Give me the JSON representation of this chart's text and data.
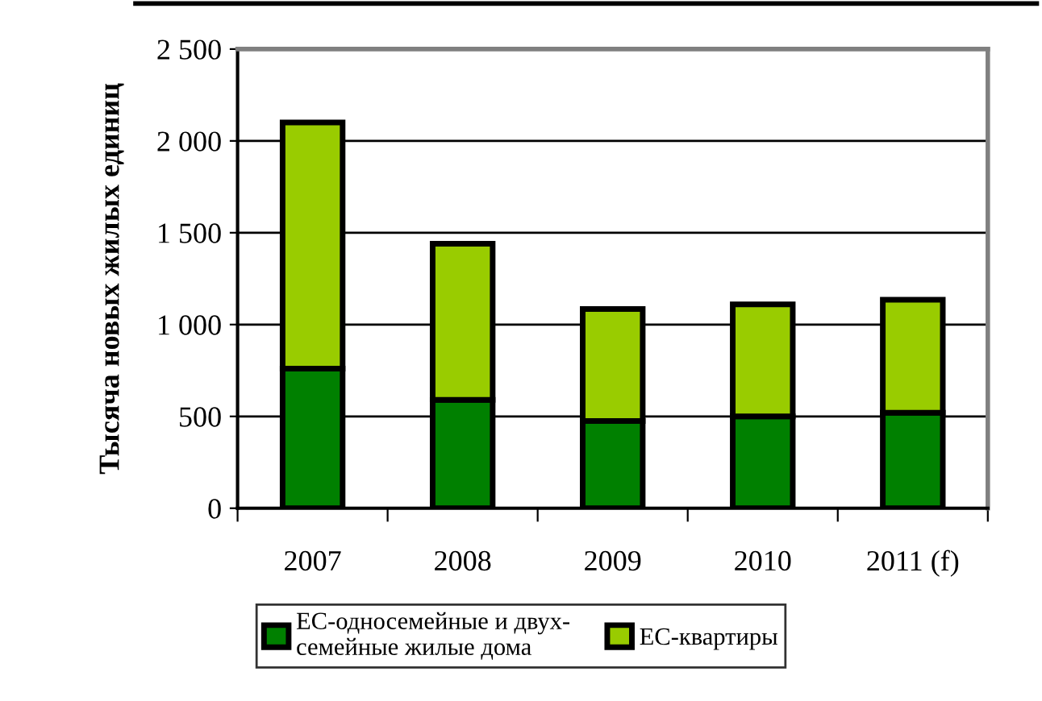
{
  "chart_data": {
    "type": "bar",
    "stacked": true,
    "ylabel": "Тысяча новых жилых единиц",
    "categories": [
      "2007",
      "2008",
      "2009",
      "2010",
      "2011 (f)"
    ],
    "series": [
      {
        "name": "ЕС-односемейные и двух-\nсемейные жилые дома",
        "color": "#008000",
        "values": [
          760,
          590,
          475,
          500,
          520
        ]
      },
      {
        "name": "ЕС-квартиры",
        "color": "#99cc00",
        "values": [
          1340,
          850,
          610,
          610,
          615
        ]
      }
    ],
    "ylim": [
      0,
      2500
    ],
    "yticks": [
      {
        "value": 0,
        "label": "0"
      },
      {
        "value": 500,
        "label": "500"
      },
      {
        "value": 1000,
        "label": "1 000"
      },
      {
        "value": 1500,
        "label": "1 500"
      },
      {
        "value": 2000,
        "label": "2 000"
      },
      {
        "value": 2500,
        "label": "2 500"
      }
    ],
    "grid": "y",
    "legend": "bottom"
  }
}
